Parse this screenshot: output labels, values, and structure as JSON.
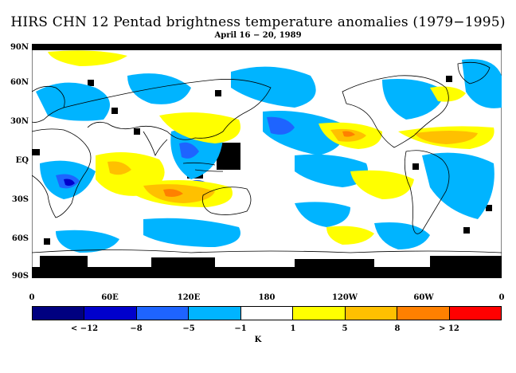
{
  "title": "HIRS CHN 12 Pentad brightness temperature anomalies (1979−1995)",
  "subtitle": "April 16 − 20, 1989",
  "lat_labels": [
    "90N",
    "60N",
    "30N",
    "EQ",
    "30S",
    "60S",
    "90S"
  ],
  "lat_values": [
    90,
    60,
    30,
    0,
    -30,
    -60,
    -90
  ],
  "lon_labels": [
    "0",
    "60E",
    "120E",
    "180",
    "120W",
    "60W",
    "0"
  ],
  "colorbar": {
    "colors": [
      "#000080",
      "#0000cc",
      "#1e64ff",
      "#00b4ff",
      "#ffffff",
      "#ffff00",
      "#ffc000",
      "#ff8000",
      "#ff0000"
    ],
    "labels": [
      "< −12",
      "−8",
      "−5",
      "−1",
      "1",
      "5",
      "8",
      "> 12"
    ],
    "unit": "K"
  },
  "legend_colors": {
    "missing": "#000000",
    "cold_strong": "#1e64ff",
    "cold": "#00b4ff",
    "warm": "#ffff00",
    "warm_strong": "#ffc000",
    "hot": "#ff8000"
  }
}
